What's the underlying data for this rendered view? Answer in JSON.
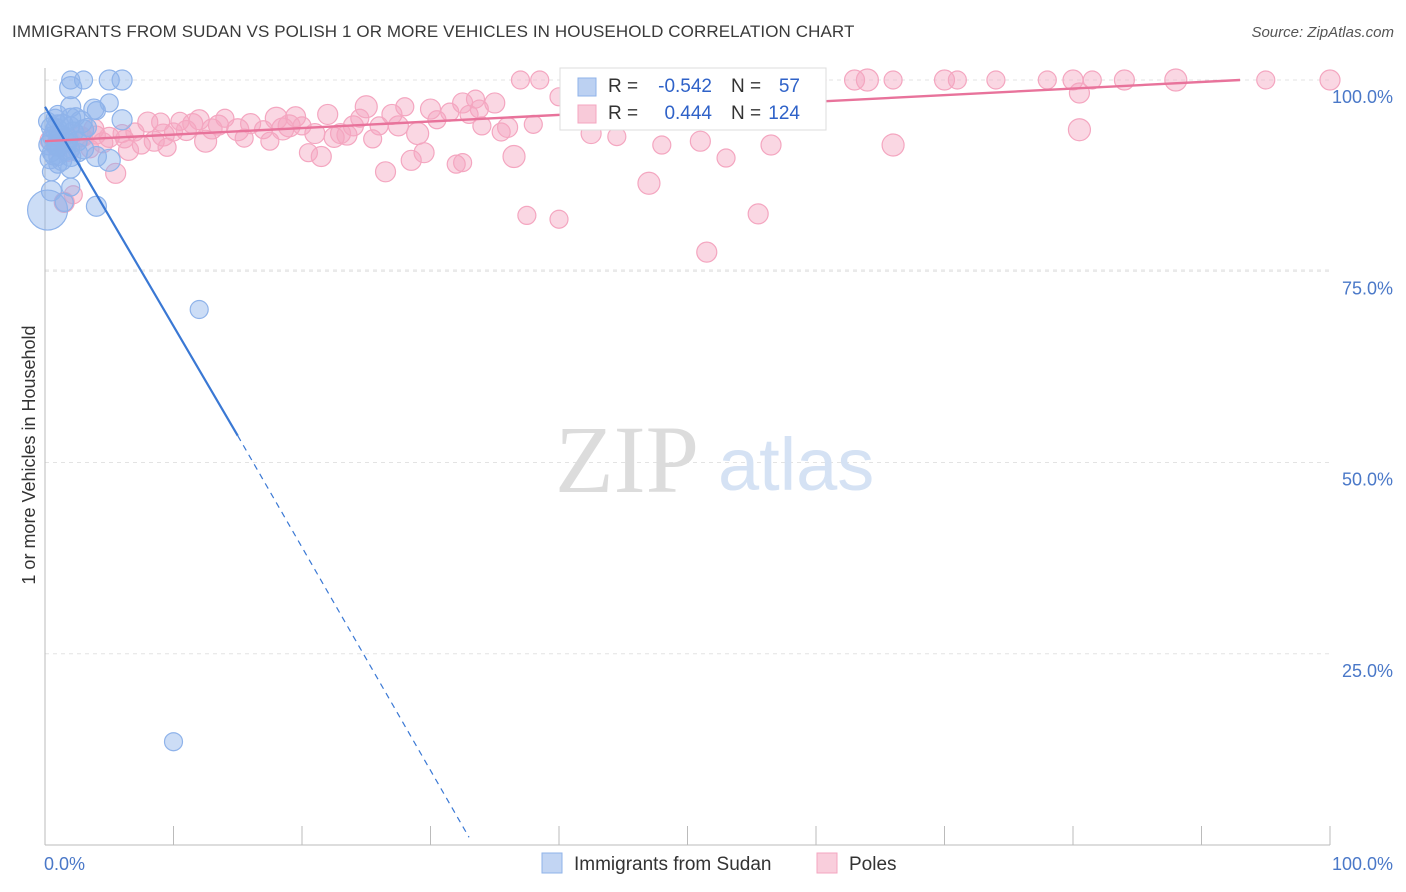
{
  "header": {
    "title": "IMMIGRANTS FROM SUDAN VS POLISH 1 OR MORE VEHICLES IN HOUSEHOLD CORRELATION CHART",
    "source": "Source: ZipAtlas.com"
  },
  "watermark": {
    "zip": "ZIP",
    "atlas": "atlas"
  },
  "chart_data": {
    "type": "scatter",
    "title": "IMMIGRANTS FROM SUDAN VS POLISH 1 OR MORE VEHICLES IN HOUSEHOLD CORRELATION CHART",
    "xlabel": "",
    "ylabel": "1 or more Vehicles in Household",
    "xlim": [
      0,
      100
    ],
    "ylim": [
      0,
      102
    ],
    "x_tick_labels": [
      "0.0%",
      "100.0%"
    ],
    "y_ticks": [
      {
        "value": 100,
        "label": "100.0%"
      },
      {
        "value": 75,
        "label": "75.0%"
      },
      {
        "value": 50,
        "label": "50.0%"
      },
      {
        "value": 25,
        "label": "25.0%"
      }
    ],
    "grid": true,
    "legend_position": "bottom",
    "stats": [
      {
        "r_label": "R =",
        "r": "-0.542",
        "n_label": "N =",
        "n": "57"
      },
      {
        "r_label": "R =",
        "r": "0.444",
        "n_label": "N =",
        "n": "124"
      }
    ],
    "series": [
      {
        "name": "Immigrants from Sudan",
        "color": "#8fb3ea",
        "line_color": "#3a78d4",
        "trend": {
          "x0": 0,
          "y0": 96.5,
          "x1": 15,
          "y1": 53.5,
          "dash_to_x": 33,
          "dash_to_y": 1
        },
        "points": [
          [
            2,
            100
          ],
          [
            3,
            100
          ],
          [
            5,
            100
          ],
          [
            6,
            100
          ],
          [
            2,
            99
          ],
          [
            5,
            97
          ],
          [
            2,
            96.5
          ],
          [
            4,
            96
          ],
          [
            1,
            95.5
          ],
          [
            2,
            95
          ],
          [
            6,
            94.8
          ],
          [
            1,
            94
          ],
          [
            2,
            94
          ],
          [
            3,
            93.5
          ],
          [
            1,
            93
          ],
          [
            1.5,
            92.5
          ],
          [
            2.5,
            92
          ],
          [
            0.5,
            92
          ],
          [
            1,
            91.5
          ],
          [
            2,
            91
          ],
          [
            3,
            91
          ],
          [
            0.5,
            90.5
          ],
          [
            1,
            90
          ],
          [
            2,
            90
          ],
          [
            4,
            90
          ],
          [
            5,
            89.5
          ],
          [
            1,
            89
          ],
          [
            2,
            88.5
          ],
          [
            0.5,
            88
          ],
          [
            2,
            86
          ],
          [
            0.5,
            85.5
          ],
          [
            4,
            83.5
          ],
          [
            0.2,
            83
          ],
          [
            1.5,
            84
          ],
          [
            0.5,
            93.8
          ],
          [
            1.2,
            92.8
          ],
          [
            1.8,
            91.8
          ],
          [
            2.2,
            93.2
          ],
          [
            1.6,
            90.8
          ],
          [
            2.8,
            94.5
          ],
          [
            0.8,
            95
          ],
          [
            1.3,
            89.5
          ],
          [
            12,
            70
          ],
          [
            10,
            13.5
          ],
          [
            0.3,
            91.5
          ],
          [
            0.6,
            92.6
          ],
          [
            0.9,
            93.5
          ],
          [
            1.1,
            91.2
          ],
          [
            1.4,
            94.2
          ],
          [
            2.4,
            95.2
          ],
          [
            3.3,
            93.8
          ],
          [
            0.4,
            89.7
          ],
          [
            0.7,
            90.2
          ],
          [
            1.7,
            92.2
          ],
          [
            2.6,
            90.5
          ],
          [
            3.8,
            96.2
          ],
          [
            0.2,
            94.6
          ]
        ]
      },
      {
        "name": "Poles",
        "color": "#f4a6c0",
        "line_color": "#e8739b",
        "trend": {
          "x0": 0,
          "y0": 92,
          "x1": 93,
          "y1": 100
        },
        "points": [
          [
            37,
            100
          ],
          [
            38.5,
            100
          ],
          [
            41,
            100
          ],
          [
            45,
            100
          ],
          [
            46,
            100
          ],
          [
            49,
            100
          ],
          [
            51,
            100
          ],
          [
            52,
            100
          ],
          [
            55,
            100
          ],
          [
            60,
            100
          ],
          [
            63,
            100
          ],
          [
            64,
            100
          ],
          [
            66,
            100
          ],
          [
            70,
            100
          ],
          [
            74,
            100
          ],
          [
            78,
            100
          ],
          [
            80,
            100
          ],
          [
            84,
            100
          ],
          [
            88,
            100
          ],
          [
            95,
            100
          ],
          [
            100,
            100
          ],
          [
            81.5,
            100
          ],
          [
            71,
            100
          ],
          [
            59,
            100
          ],
          [
            47,
            100
          ],
          [
            42,
            99.5
          ],
          [
            44,
            99
          ],
          [
            80.5,
            98.3
          ],
          [
            40,
            97.8
          ],
          [
            33.5,
            97.5
          ],
          [
            32.5,
            97
          ],
          [
            35,
            97
          ],
          [
            25,
            96.5
          ],
          [
            28,
            96.5
          ],
          [
            30,
            96.2
          ],
          [
            31.5,
            95.8
          ],
          [
            33,
            95.5
          ],
          [
            27,
            95.5
          ],
          [
            22,
            95.5
          ],
          [
            18,
            95
          ],
          [
            14,
            95
          ],
          [
            12,
            94.8
          ],
          [
            10.5,
            94.6
          ],
          [
            9,
            94.5
          ],
          [
            8,
            94.5
          ],
          [
            16,
            94.3
          ],
          [
            19,
            94
          ],
          [
            20,
            94
          ],
          [
            24,
            94
          ],
          [
            26,
            94
          ],
          [
            34,
            94
          ],
          [
            36,
            93.8
          ],
          [
            13,
            93.6
          ],
          [
            15,
            93.5
          ],
          [
            17,
            93.5
          ],
          [
            11,
            93.4
          ],
          [
            7,
            93.2
          ],
          [
            6,
            93
          ],
          [
            21,
            93
          ],
          [
            23,
            93
          ],
          [
            29,
            93
          ],
          [
            4,
            92.8
          ],
          [
            5,
            92.5
          ],
          [
            3,
            92.5
          ],
          [
            2,
            92.2
          ],
          [
            1,
            92
          ],
          [
            8.5,
            92
          ],
          [
            12.5,
            92
          ],
          [
            17.5,
            92
          ],
          [
            22.5,
            92.5
          ],
          [
            25.5,
            92.3
          ],
          [
            44.5,
            92.6
          ],
          [
            51,
            92
          ],
          [
            56.5,
            91.5
          ],
          [
            66,
            91.5
          ],
          [
            3.5,
            91
          ],
          [
            6.5,
            90.8
          ],
          [
            9.5,
            91.2
          ],
          [
            20.5,
            90.5
          ],
          [
            21.5,
            90
          ],
          [
            29.5,
            90.5
          ],
          [
            36.5,
            90
          ],
          [
            53,
            89.8
          ],
          [
            28.5,
            89.5
          ],
          [
            32,
            89
          ],
          [
            32.5,
            89.2
          ],
          [
            26.5,
            88
          ],
          [
            5.5,
            87.8
          ],
          [
            47,
            86.5
          ],
          [
            2.2,
            85
          ],
          [
            1.5,
            84
          ],
          [
            37.5,
            82.3
          ],
          [
            40,
            81.8
          ],
          [
            55.5,
            82.5
          ],
          [
            51.5,
            77.5
          ],
          [
            80.5,
            93.5
          ],
          [
            48,
            91.5
          ],
          [
            42.5,
            93
          ],
          [
            38,
            94.2
          ],
          [
            30.5,
            94.8
          ],
          [
            27.5,
            94
          ],
          [
            23.5,
            92.8
          ],
          [
            18.5,
            93.6
          ],
          [
            15.5,
            92.4
          ],
          [
            13.5,
            94.1
          ],
          [
            10,
            93.2
          ],
          [
            7.5,
            91.5
          ],
          [
            4.5,
            91.8
          ],
          [
            2.8,
            92.6
          ],
          [
            1.8,
            90.8
          ],
          [
            0.8,
            91.3
          ],
          [
            0.4,
            92.1
          ],
          [
            35.5,
            93.2
          ],
          [
            24.5,
            95
          ],
          [
            19.5,
            95.2
          ],
          [
            11.5,
            94.3
          ],
          [
            9.2,
            92.8
          ],
          [
            6.2,
            92.3
          ],
          [
            3.8,
            93.6
          ],
          [
            33.8,
            96.2
          ],
          [
            45.5,
            95.1
          ]
        ]
      }
    ]
  }
}
